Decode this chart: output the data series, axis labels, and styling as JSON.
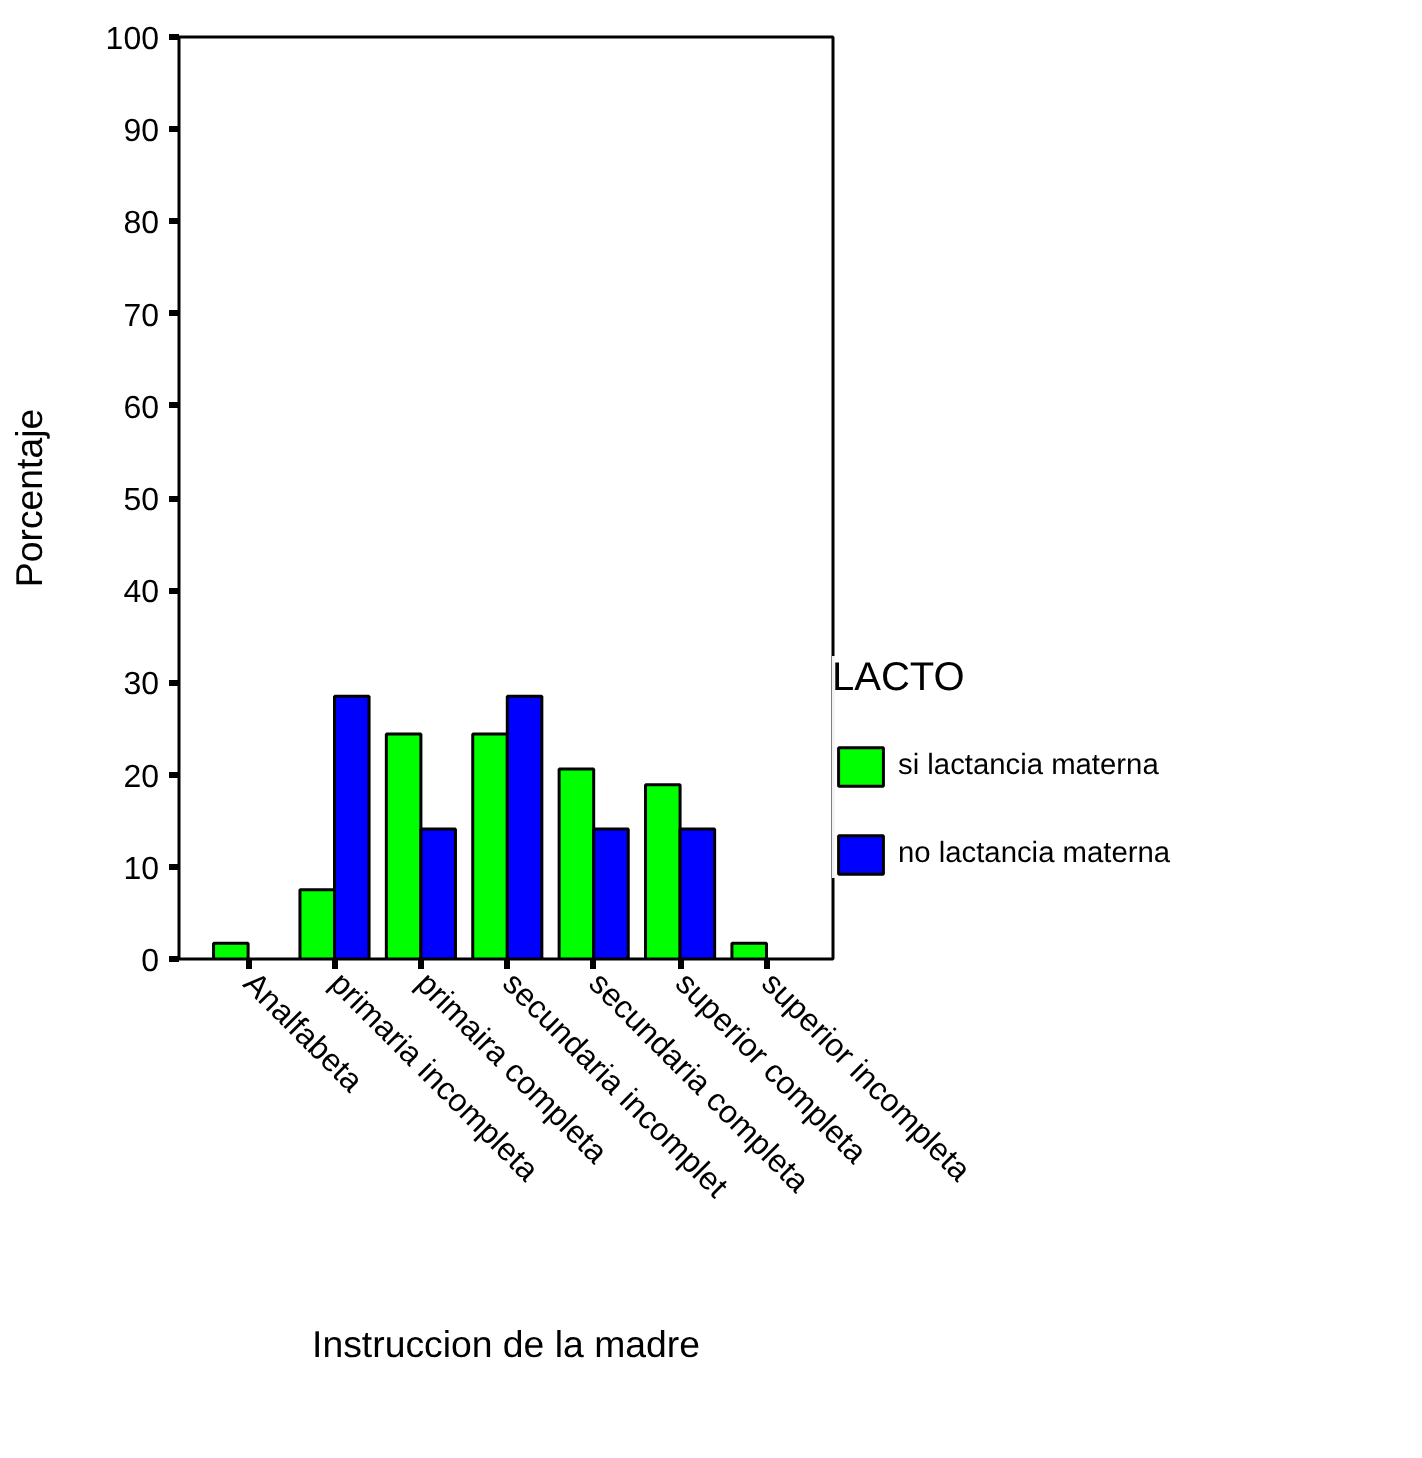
{
  "chart_data": {
    "type": "bar",
    "categories": [
      "Analfabeta",
      "primaria incompleta",
      "primaira completa",
      "secundaria incomplet",
      "secundaria completa",
      "superior completa",
      "superior incompleta"
    ],
    "series": [
      {
        "name": "si lactancia materna",
        "color": "#00ff00",
        "values": [
          1.7,
          7.5,
          24.4,
          24.4,
          20.6,
          18.9,
          1.7
        ]
      },
      {
        "name": "no lactancia materna",
        "color": "#0000ff",
        "values": [
          null,
          28.5,
          14.1,
          28.5,
          14.1,
          14.1,
          null
        ]
      }
    ],
    "xlabel": "Instruccion de la madre",
    "ylabel": "Porcentaje",
    "legend_title": "LACTO",
    "ylim": [
      0,
      100
    ],
    "yticks": [
      0,
      10,
      20,
      30,
      40,
      50,
      60,
      70,
      80,
      90,
      100
    ],
    "grid": false,
    "legend": "right"
  }
}
